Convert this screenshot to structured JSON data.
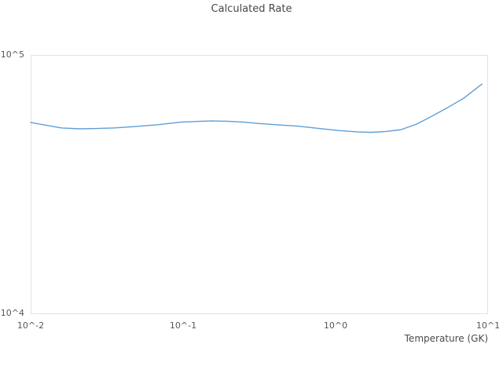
{
  "chart_data": {
    "type": "line",
    "title": "Calculated Rate",
    "xlabel": "Temperature (GK)",
    "ylabel": "",
    "x_scale": "log",
    "y_scale": "log",
    "xlim": [
      0.01,
      10
    ],
    "ylim": [
      10000,
      100000
    ],
    "grid": false,
    "legend": "none",
    "line_color": "#5f9fd8",
    "x_ticks": [
      {
        "label": "10^-2",
        "value": 0.01
      },
      {
        "label": "10^-1",
        "value": 0.1
      },
      {
        "label": "10^0",
        "value": 1
      },
      {
        "label": "10^1",
        "value": 10
      }
    ],
    "y_ticks": [
      {
        "label": "10^4",
        "value": 10000
      },
      {
        "label": "10^5",
        "value": 100000
      }
    ],
    "series": [
      {
        "name": "Calculated Rate",
        "x": [
          0.01,
          0.013,
          0.016,
          0.021,
          0.026,
          0.035,
          0.047,
          0.068,
          0.097,
          0.13,
          0.155,
          0.197,
          0.249,
          0.316,
          0.426,
          0.572,
          0.77,
          1.04,
          1.39,
          1.71,
          2.11,
          2.68,
          3.4,
          4.31,
          5.46,
          6.92,
          9.1
        ],
        "y": [
          54900,
          53400,
          52300,
          51900,
          52000,
          52300,
          52900,
          53800,
          55100,
          55500,
          55700,
          55500,
          55100,
          54400,
          53700,
          53100,
          52100,
          51100,
          50500,
          50300,
          50600,
          51500,
          54100,
          58200,
          62800,
          68100,
          77200
        ]
      }
    ]
  },
  "colors": {
    "background": "#ffffff",
    "plot_border": "#e2e2e2",
    "title_text": "#474747",
    "tick_text": "#565656",
    "line": "#5f9fd8"
  }
}
